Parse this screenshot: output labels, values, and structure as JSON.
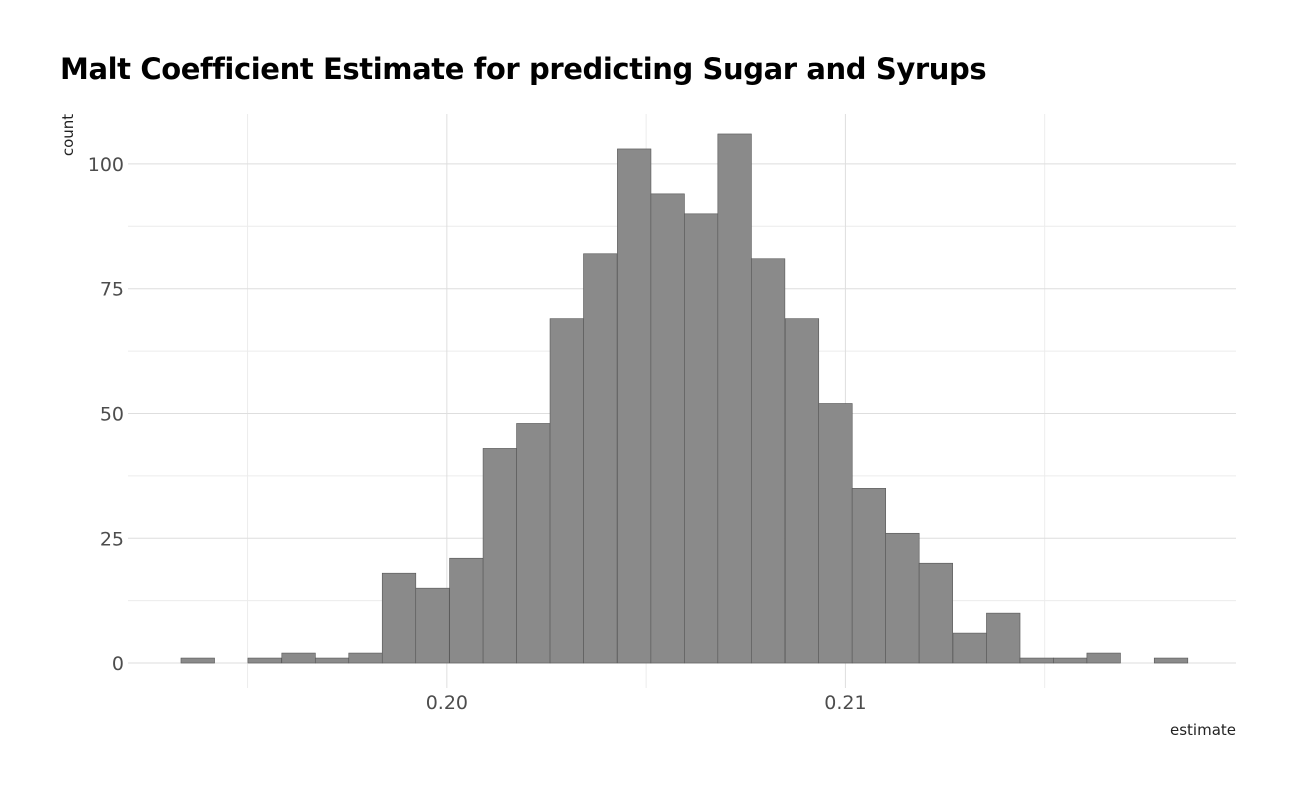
{
  "chart_data": {
    "type": "bar",
    "histogram": true,
    "title": "Malt Coefficient Estimate for predicting Sugar and Syrups",
    "xlabel": "estimate",
    "ylabel": "count",
    "xlim": [
      0.192,
      0.2198
    ],
    "ylim": [
      -5,
      110
    ],
    "bin_width": 0.000842,
    "x_ticks": [
      0.2,
      0.21
    ],
    "x_tick_labels": [
      "0.20",
      "0.21"
    ],
    "y_ticks": [
      0,
      25,
      50,
      75,
      100
    ],
    "y_tick_labels": [
      "0",
      "25",
      "50",
      "75",
      "100"
    ],
    "bin_centers": [
      0.19375,
      0.19459,
      0.19543,
      0.19628,
      0.19712,
      0.19796,
      0.1988,
      0.19964,
      0.20049,
      0.20133,
      0.20217,
      0.20301,
      0.20385,
      0.2047,
      0.20554,
      0.20638,
      0.20722,
      0.20806,
      0.20891,
      0.20975,
      0.21059,
      0.21143,
      0.21227,
      0.21312,
      0.21396,
      0.2148,
      0.21564,
      0.21648,
      0.21733,
      0.21817
    ],
    "values": [
      1,
      0,
      1,
      2,
      1,
      2,
      18,
      15,
      21,
      43,
      48,
      69,
      82,
      103,
      94,
      90,
      106,
      81,
      69,
      52,
      35,
      26,
      20,
      6,
      10,
      1,
      1,
      2,
      0,
      1
    ],
    "grid": true,
    "colors": {
      "bar_fill": "#8a8a8a",
      "bar_stroke": "#555555",
      "grid": "#dedede"
    }
  }
}
